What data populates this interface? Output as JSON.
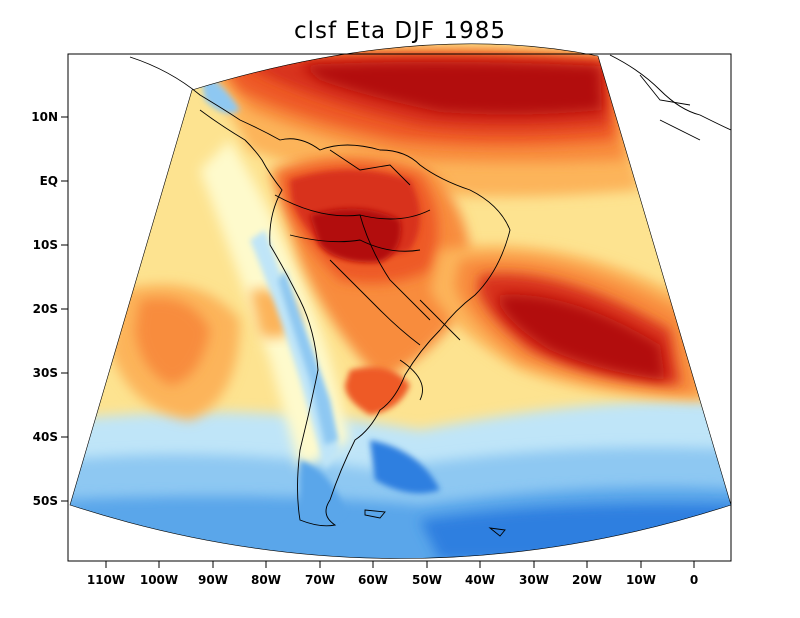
{
  "title": "clsf Eta DJF 1985",
  "axes": {
    "lat_labels": [
      "10N",
      "EQ",
      "10S",
      "20S",
      "30S",
      "40S",
      "50S"
    ],
    "lon_labels": [
      "110W",
      "100W",
      "90W",
      "80W",
      "70W",
      "60W",
      "50W",
      "40W",
      "30W",
      "20W",
      "10W",
      "0"
    ]
  },
  "colors": {
    "dark_red": "#b20f0f",
    "red": "#d8321e",
    "red_orange": "#ee5a28",
    "orange": "#f88c3c",
    "light_orange": "#fcb45a",
    "yellow": "#fde390",
    "pale": "#fefacc",
    "light_blue": "#bfe5f8",
    "sky_blue": "#8ec8f2",
    "blue": "#5aa6ea",
    "deep_blue": "#2e7fe0"
  }
}
